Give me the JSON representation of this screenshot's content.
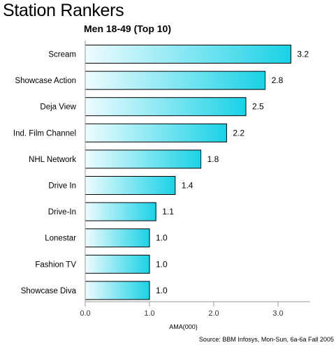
{
  "chart_data": {
    "type": "bar",
    "orientation": "horizontal",
    "title": "Station Rankers",
    "subtitle": "Men 18-49 (Top 10)",
    "categories": [
      "Scream",
      "Showcase Action",
      "Deja View",
      "Ind. Film Channel",
      "NHL Network",
      "Drive In",
      "Drive-In",
      "Lonestar",
      "Fashion TV",
      "Showcase Diva"
    ],
    "values": [
      3.2,
      2.8,
      2.5,
      2.2,
      1.8,
      1.4,
      1.1,
      1.0,
      1.0,
      1.0
    ],
    "value_labels": [
      "3.2",
      "2.8",
      "2.5",
      "2.2",
      "1.8",
      "1.4",
      "1.1",
      "1.0",
      "1.0",
      "1.0"
    ],
    "xlabel": "AMA(000)",
    "ylabel": "",
    "xlim": [
      0,
      3.5
    ],
    "x_ticks": [
      "0.0",
      "1.0",
      "2.0",
      "3.0"
    ],
    "x_tick_values": [
      0,
      1,
      2,
      3
    ],
    "grid": false,
    "legend": "none",
    "source": "Source: BBM Infosys, Mon-Sun, 6a-6a Fall 2005",
    "colors": {
      "bar_light": "#eefcff",
      "bar_dark": "#19d2e6",
      "bar_border": "#000000"
    }
  }
}
